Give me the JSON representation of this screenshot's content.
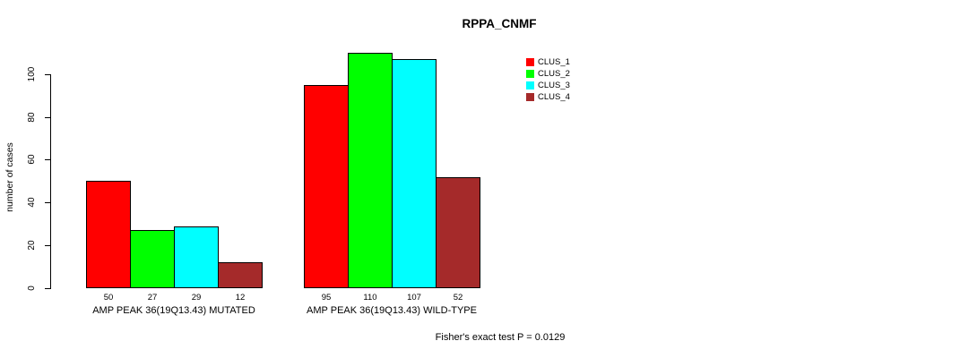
{
  "chart_data": {
    "type": "bar",
    "title": "RPPA_CNMF",
    "ylabel": "number of cases",
    "xlabel": "",
    "categories": [
      "AMP PEAK 36(19Q13.43) MUTATED",
      "AMP PEAK 36(19Q13.43) WILD-TYPE"
    ],
    "series": [
      {
        "name": "CLUS_1",
        "color": "#FF0000",
        "values": [
          50,
          95
        ]
      },
      {
        "name": "CLUS_2",
        "color": "#00FF00",
        "values": [
          27,
          110
        ]
      },
      {
        "name": "CLUS_3",
        "color": "#00FFFF",
        "values": [
          29,
          107
        ]
      },
      {
        "name": "CLUS_4",
        "color": "#A52A2A",
        "values": [
          12,
          52
        ]
      }
    ],
    "yticks": [
      0,
      20,
      40,
      60,
      80,
      100
    ],
    "ylim": [
      0,
      110
    ],
    "grid": false,
    "legend_position": "top-right",
    "bar_outline_color": "#000000",
    "background_color": "#FFFFFF",
    "annotation": "Fisher's exact test P = 0.0129"
  }
}
